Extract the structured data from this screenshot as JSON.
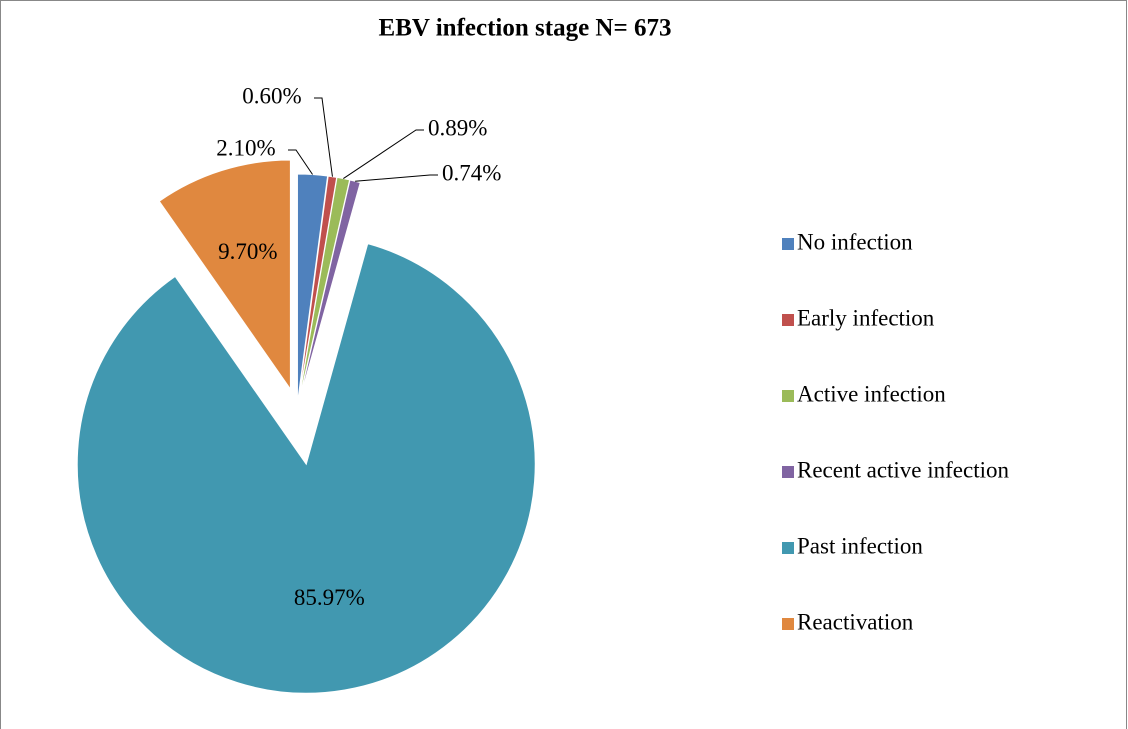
{
  "chart_data": {
    "type": "pie",
    "title": "EBV infection stage N= 673",
    "categories": [
      "No infection",
      "Early infection",
      "Active infection",
      "Recent active infection",
      "Past infection",
      "Reactivation"
    ],
    "values": [
      2.1,
      0.6,
      0.89,
      0.74,
      85.97,
      9.7
    ],
    "value_labels": [
      "2.10%",
      "0.60%",
      "0.89%",
      "0.74%",
      "85.97%",
      "9.70%"
    ],
    "colors": [
      "#4f81bd",
      "#c0504d",
      "#9bbb59",
      "#8064a2",
      "#4198b0",
      "#e0883f"
    ],
    "legend": "right"
  }
}
